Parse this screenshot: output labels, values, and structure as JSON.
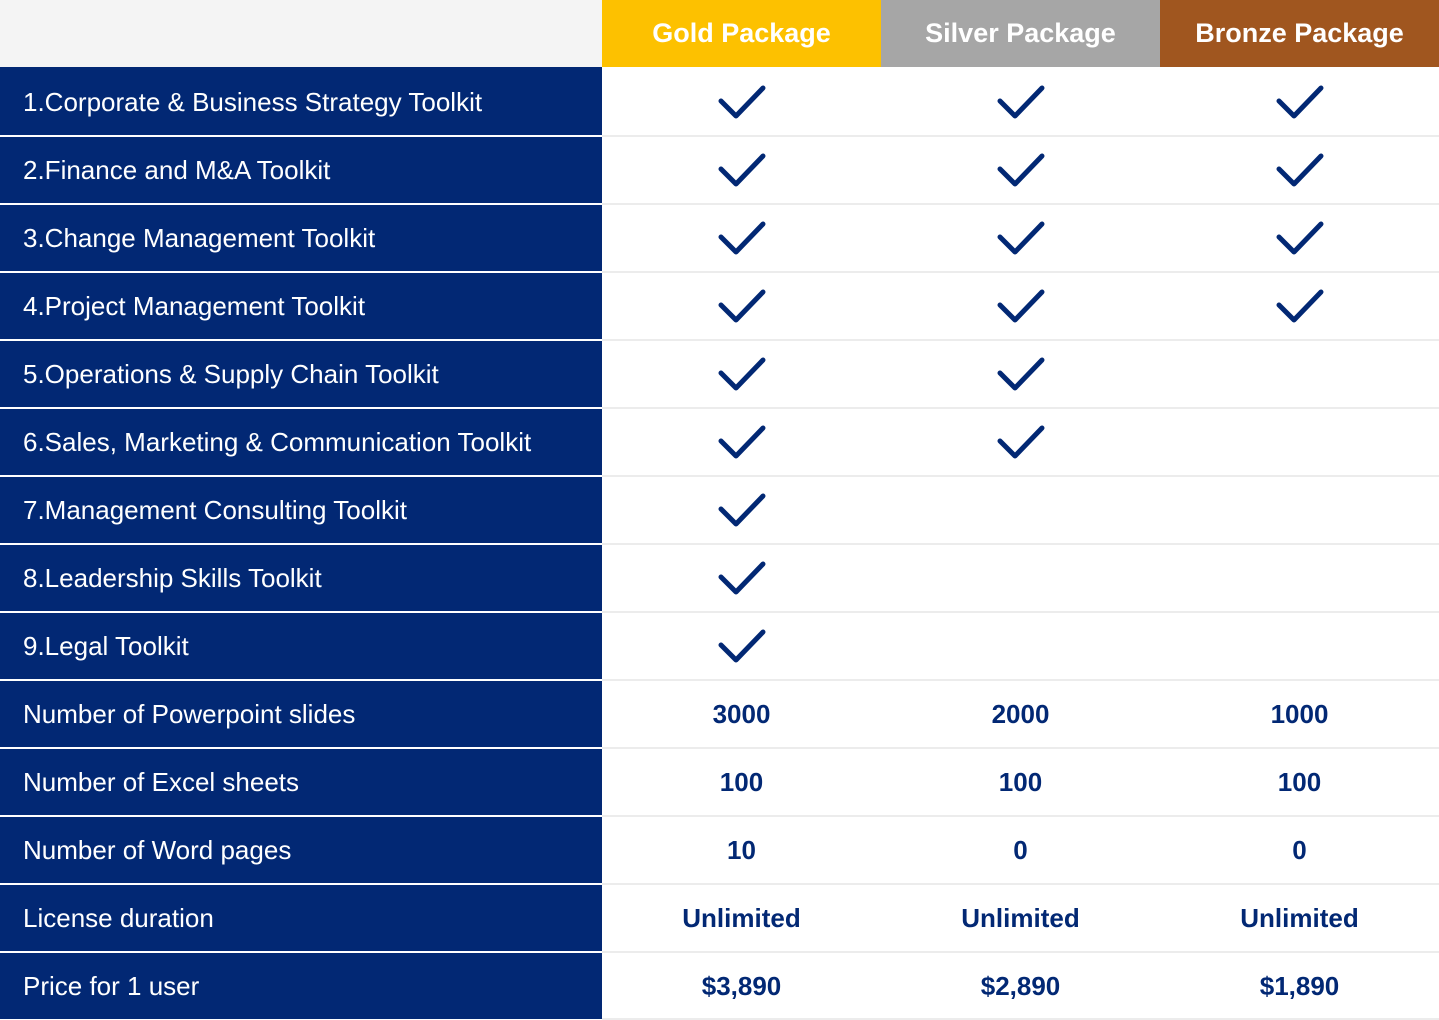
{
  "header": {
    "packages": [
      {
        "label": "Gold Package",
        "color": "#fdc100"
      },
      {
        "label": "Silver Package",
        "color": "#a6a6a6"
      },
      {
        "label": "Bronze Package",
        "color": "#a0561f"
      }
    ]
  },
  "colors": {
    "label_bg": "#022874",
    "value_text": "#022874"
  },
  "rows": [
    {
      "label": "1.Corporate & Business Strategy Toolkit",
      "type": "check",
      "values": [
        true,
        true,
        true
      ]
    },
    {
      "label": "2.Finance and M&A Toolkit",
      "type": "check",
      "values": [
        true,
        true,
        true
      ]
    },
    {
      "label": "3.Change Management Toolkit",
      "type": "check",
      "values": [
        true,
        true,
        true
      ]
    },
    {
      "label": "4.Project Management Toolkit",
      "type": "check",
      "values": [
        true,
        true,
        true
      ]
    },
    {
      "label": "5.Operations & Supply Chain Toolkit",
      "type": "check",
      "values": [
        true,
        true,
        false
      ]
    },
    {
      "label": "6.Sales, Marketing & Communication Toolkit",
      "type": "check",
      "values": [
        true,
        true,
        false
      ]
    },
    {
      "label": "7.Management Consulting Toolkit",
      "type": "check",
      "values": [
        true,
        false,
        false
      ]
    },
    {
      "label": "8.Leadership Skills Toolkit",
      "type": "check",
      "values": [
        true,
        false,
        false
      ]
    },
    {
      "label": "9.Legal Toolkit",
      "type": "check",
      "values": [
        true,
        false,
        false
      ]
    },
    {
      "label": "Number of Powerpoint slides",
      "type": "text",
      "values": [
        "3000",
        "2000",
        "1000"
      ]
    },
    {
      "label": "Number of Excel sheets",
      "type": "text",
      "values": [
        "100",
        "100",
        "100"
      ]
    },
    {
      "label": "Number of Word pages",
      "type": "text",
      "values": [
        "10",
        "0",
        "0"
      ]
    },
    {
      "label": "License duration",
      "type": "text",
      "values": [
        "Unlimited",
        "Unlimited",
        "Unlimited"
      ]
    },
    {
      "label": "Price for 1 user",
      "type": "text",
      "values": [
        "$3,890",
        "$2,890",
        "$1,890"
      ]
    }
  ]
}
